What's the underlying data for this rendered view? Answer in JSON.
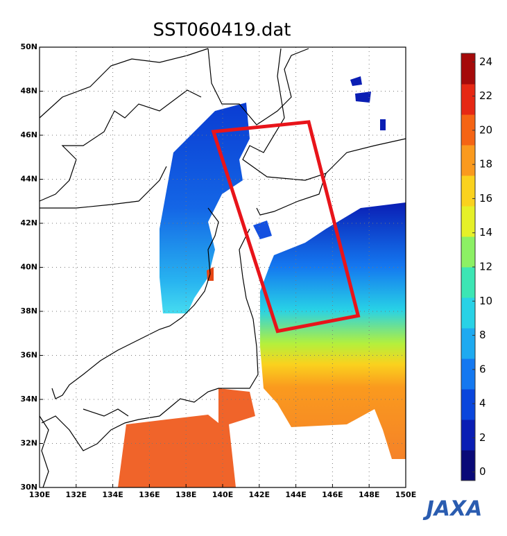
{
  "chart_data": {
    "type": "map",
    "title": "SST060419.dat",
    "xlim": [
      130,
      150
    ],
    "ylim": [
      30,
      50
    ],
    "xticks": [
      {
        "value": 130,
        "label": "130E"
      },
      {
        "value": 132,
        "label": "132E"
      },
      {
        "value": 134,
        "label": "134E"
      },
      {
        "value": 136,
        "label": "136E"
      },
      {
        "value": 138,
        "label": "138E"
      },
      {
        "value": 140,
        "label": "140E"
      },
      {
        "value": 142,
        "label": "142E"
      },
      {
        "value": 144,
        "label": "144E"
      },
      {
        "value": 146,
        "label": "146E"
      },
      {
        "value": 148,
        "label": "148E"
      },
      {
        "value": 150,
        "label": "150E"
      }
    ],
    "yticks": [
      {
        "value": 30,
        "label": "30N"
      },
      {
        "value": 32,
        "label": "32N"
      },
      {
        "value": 34,
        "label": "34N"
      },
      {
        "value": 36,
        "label": "36N"
      },
      {
        "value": 38,
        "label": "38N"
      },
      {
        "value": 40,
        "label": "40N"
      },
      {
        "value": 42,
        "label": "42N"
      },
      {
        "value": 44,
        "label": "44N"
      },
      {
        "value": 46,
        "label": "46N"
      },
      {
        "value": 48,
        "label": "48N"
      },
      {
        "value": 50,
        "label": "50N"
      }
    ],
    "grid": true,
    "colorbar": {
      "lim": [
        -0.5,
        24.5
      ],
      "ticks": [
        0,
        2,
        4,
        6,
        8,
        10,
        12,
        14,
        16,
        18,
        20,
        22,
        24
      ],
      "colors": [
        "#0a0a78",
        "#0a1eb4",
        "#0a46dc",
        "#1478f0",
        "#1eaaf0",
        "#28d2e6",
        "#3ce6b4",
        "#8cf064",
        "#e6f028",
        "#fad21e",
        "#fa9a1e",
        "#f56414",
        "#e62814",
        "#a50a0a"
      ]
    },
    "box": {
      "color": "#e8141a",
      "lon": [
        139.5,
        144.7,
        147.4,
        143.0
      ],
      "lat": [
        46.16,
        46.6,
        37.8,
        37.1
      ]
    }
  },
  "logo": "JAXA"
}
